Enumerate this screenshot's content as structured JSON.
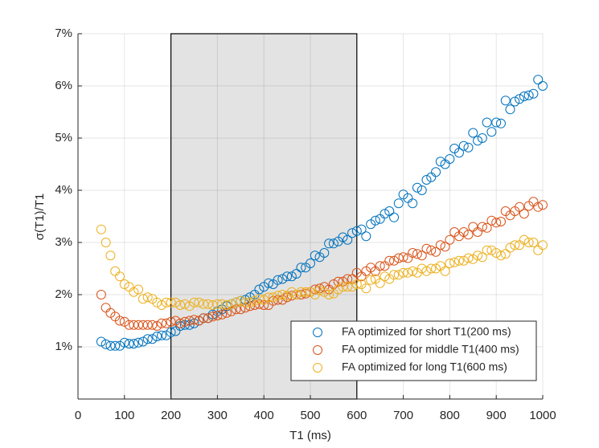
{
  "chart_data": {
    "type": "scatter",
    "xlabel": "T1 (ms)",
    "ylabel": "σ(T1)/T1",
    "xlim": [
      0,
      1000
    ],
    "xticks": [
      0,
      100,
      200,
      300,
      400,
      500,
      600,
      700,
      800,
      900,
      1000
    ],
    "ylim": [
      0,
      7
    ],
    "yticks": [
      {
        "value": 1,
        "label": "1%"
      },
      {
        "value": 2,
        "label": "2%"
      },
      {
        "value": 3,
        "label": "3%"
      },
      {
        "value": 4,
        "label": "4%"
      },
      {
        "value": 5,
        "label": "5%"
      },
      {
        "value": 6,
        "label": "6%"
      },
      {
        "value": 7,
        "label": "7%"
      }
    ],
    "grid": true,
    "legend_loc": "lower right",
    "highlight_span": [
      200,
      600
    ],
    "x": [
      50,
      60,
      70,
      80,
      90,
      100,
      110,
      120,
      130,
      140,
      150,
      160,
      170,
      180,
      190,
      200,
      210,
      220,
      230,
      240,
      250,
      260,
      270,
      280,
      290,
      300,
      310,
      320,
      330,
      340,
      350,
      360,
      370,
      380,
      390,
      400,
      410,
      420,
      430,
      440,
      450,
      460,
      470,
      480,
      490,
      500,
      510,
      520,
      530,
      540,
      550,
      560,
      570,
      580,
      590,
      600,
      610,
      620,
      630,
      640,
      650,
      660,
      670,
      680,
      690,
      700,
      710,
      720,
      730,
      740,
      750,
      760,
      770,
      780,
      790,
      800,
      810,
      820,
      830,
      840,
      850,
      860,
      870,
      880,
      890,
      900,
      910,
      920,
      930,
      940,
      950,
      960,
      970,
      980,
      990,
      1000
    ],
    "series": [
      {
        "name": "FA optimized for short T1(200 ms)",
        "color": "#0072BD",
        "values": [
          1.1,
          1.05,
          1.02,
          1.02,
          1.02,
          1.08,
          1.06,
          1.06,
          1.08,
          1.1,
          1.15,
          1.15,
          1.2,
          1.22,
          1.22,
          1.28,
          1.3,
          1.4,
          1.42,
          1.42,
          1.45,
          1.5,
          1.55,
          1.55,
          1.62,
          1.68,
          1.72,
          1.78,
          1.82,
          1.85,
          1.88,
          1.9,
          1.95,
          2.0,
          2.1,
          2.15,
          2.22,
          2.2,
          2.28,
          2.3,
          2.35,
          2.35,
          2.4,
          2.52,
          2.52,
          2.6,
          2.75,
          2.72,
          2.8,
          2.98,
          2.98,
          3.02,
          3.1,
          3.05,
          3.18,
          3.22,
          3.25,
          3.12,
          3.35,
          3.42,
          3.45,
          3.55,
          3.6,
          3.48,
          3.75,
          3.92,
          3.85,
          3.75,
          4.05,
          4.0,
          4.2,
          4.25,
          4.35,
          4.55,
          4.5,
          4.6,
          4.8,
          4.72,
          4.85,
          4.82,
          5.1,
          4.95,
          5.0,
          5.3,
          5.12,
          5.3,
          5.28,
          5.72,
          5.55,
          5.7,
          5.75,
          5.8,
          5.82,
          5.85,
          6.12,
          6.0
        ]
      },
      {
        "name": "FA optimized for middle T1(400 ms)",
        "color": "#D95319",
        "values": [
          2.0,
          1.75,
          1.65,
          1.58,
          1.5,
          1.48,
          1.42,
          1.42,
          1.42,
          1.42,
          1.42,
          1.42,
          1.4,
          1.45,
          1.45,
          1.48,
          1.5,
          1.45,
          1.48,
          1.5,
          1.52,
          1.5,
          1.55,
          1.55,
          1.58,
          1.6,
          1.62,
          1.65,
          1.68,
          1.72,
          1.72,
          1.75,
          1.78,
          1.8,
          1.82,
          1.8,
          1.8,
          1.88,
          1.9,
          1.9,
          1.95,
          1.98,
          2.0,
          2.0,
          2.02,
          2.05,
          2.1,
          2.12,
          2.15,
          2.1,
          2.2,
          2.25,
          2.25,
          2.3,
          2.3,
          2.42,
          2.35,
          2.45,
          2.52,
          2.45,
          2.55,
          2.55,
          2.65,
          2.65,
          2.7,
          2.72,
          2.7,
          2.8,
          2.78,
          2.75,
          2.88,
          2.85,
          2.82,
          2.95,
          2.92,
          3.05,
          3.2,
          3.12,
          3.2,
          3.15,
          3.3,
          3.2,
          3.3,
          3.28,
          3.42,
          3.38,
          3.4,
          3.6,
          3.52,
          3.6,
          3.68,
          3.55,
          3.7,
          3.78,
          3.68,
          3.72
        ]
      },
      {
        "name": "FA optimized for long T1(600 ms)",
        "color": "#EDB120",
        "values": [
          3.25,
          3.0,
          2.75,
          2.45,
          2.35,
          2.2,
          2.15,
          2.05,
          2.1,
          1.92,
          1.95,
          1.92,
          1.85,
          1.8,
          1.85,
          1.85,
          1.85,
          1.8,
          1.82,
          1.78,
          1.85,
          1.85,
          1.82,
          1.82,
          1.8,
          1.82,
          1.82,
          1.8,
          1.82,
          1.85,
          1.88,
          1.85,
          1.85,
          1.88,
          1.92,
          1.9,
          1.95,
          1.95,
          1.98,
          2.0,
          1.98,
          2.05,
          2.0,
          2.05,
          2.05,
          2.05,
          2.0,
          2.08,
          2.05,
          2.0,
          2.02,
          2.1,
          2.15,
          2.15,
          2.15,
          2.2,
          2.2,
          2.12,
          2.28,
          2.3,
          2.22,
          2.35,
          2.3,
          2.38,
          2.38,
          2.42,
          2.42,
          2.45,
          2.42,
          2.5,
          2.45,
          2.5,
          2.5,
          2.55,
          2.45,
          2.6,
          2.62,
          2.65,
          2.65,
          2.7,
          2.68,
          2.75,
          2.72,
          2.85,
          2.85,
          2.8,
          2.75,
          2.78,
          2.9,
          2.95,
          2.95,
          3.05,
          3.0,
          3.0,
          2.85,
          2.95
        ]
      }
    ]
  }
}
